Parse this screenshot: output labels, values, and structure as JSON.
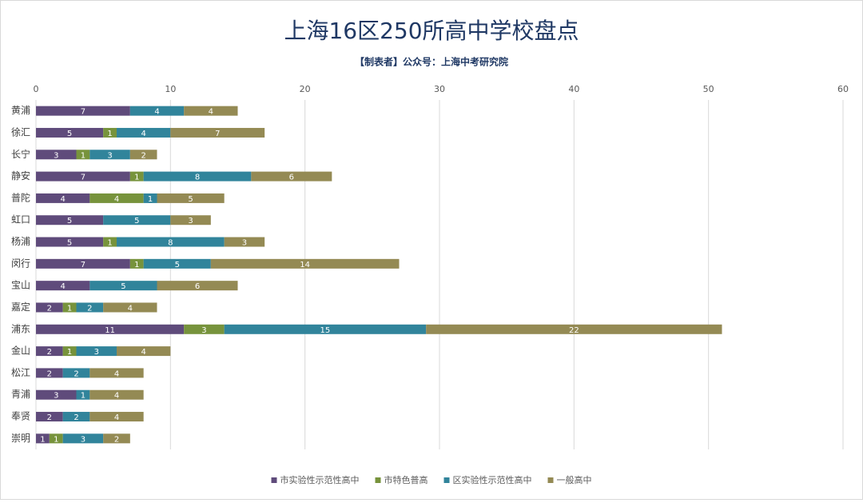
{
  "chart_data": {
    "type": "stacked_barh",
    "title": "上海16区250所高中学校盘点",
    "subtitle": "【制表者】公众号：上海中考研究院",
    "categories": [
      "黄浦",
      "徐汇",
      "长宁",
      "静安",
      "普陀",
      "虹口",
      "杨浦",
      "闵行",
      "宝山",
      "嘉定",
      "浦东",
      "金山",
      "松江",
      "青浦",
      "奉贤",
      "崇明"
    ],
    "series": [
      {
        "name": "市实验性示范性高中",
        "color": "#5f4b7b",
        "values": [
          7,
          5,
          3,
          7,
          4,
          5,
          5,
          7,
          4,
          2,
          11,
          2,
          2,
          3,
          2,
          1
        ]
      },
      {
        "name": "市特色普高",
        "color": "#77933c",
        "values": [
          null,
          1,
          1,
          1,
          4,
          null,
          1,
          1,
          null,
          1,
          3,
          1,
          null,
          null,
          null,
          1
        ]
      },
      {
        "name": "区实验性示范性高中",
        "color": "#31849b",
        "values": [
          4,
          4,
          3,
          8,
          1,
          5,
          8,
          5,
          5,
          2,
          15,
          3,
          2,
          1,
          2,
          3
        ]
      },
      {
        "name": "一般高中",
        "color": "#948a54",
        "values": [
          4,
          7,
          2,
          6,
          5,
          3,
          3,
          14,
          6,
          4,
          22,
          4,
          4,
          4,
          4,
          2
        ]
      }
    ],
    "xlim": [
      0,
      60
    ],
    "xticks": [
      0,
      10,
      20,
      30,
      40,
      50,
      60
    ],
    "grid": true,
    "legend": "bottom"
  }
}
